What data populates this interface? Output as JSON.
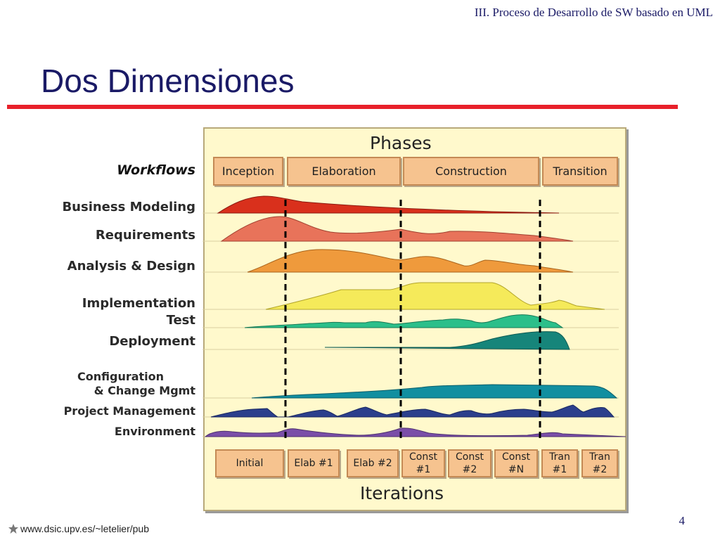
{
  "header": "III. Proceso de Desarrollo de SW basado en  UML",
  "title": "Dos Dimensiones",
  "diagram": {
    "phases_title": "Phases",
    "workflows_heading": "Workflows",
    "phases": [
      "Inception",
      "Elaboration",
      "Construction",
      "Transition"
    ],
    "workflows": [
      "Business Modeling",
      "Requirements",
      "Analysis & Design",
      "Implementation",
      "Test",
      "Deployment",
      "Configuration",
      "& Change Mgmt",
      "Project Management",
      "Environment"
    ],
    "iterations_title": "Iterations",
    "iterations": [
      {
        "line1": "Initial",
        "line2": ""
      },
      {
        "line1": "Elab #1",
        "line2": ""
      },
      {
        "line1": "Elab #2",
        "line2": ""
      },
      {
        "line1": "Const",
        "line2": "#1"
      },
      {
        "line1": "Const",
        "line2": "#2"
      },
      {
        "line1": "Const",
        "line2": "#N"
      },
      {
        "line1": "Tran",
        "line2": "#1"
      },
      {
        "line1": "Tran",
        "line2": "#2"
      }
    ],
    "colors": {
      "business_modeling": "#d9301c",
      "requirements": "#e8735a",
      "analysis_design": "#ef9a3c",
      "implementation": "#f5ea5a",
      "test": "#2bbf8a",
      "deployment": "#16857a",
      "config_change": "#128fa0",
      "project_mgmt": "#2b3f8c",
      "environment": "#7a4ea8"
    }
  },
  "footer": {
    "url": "www.dsic.upv.es/~letelier/pub",
    "page_number": "4"
  }
}
